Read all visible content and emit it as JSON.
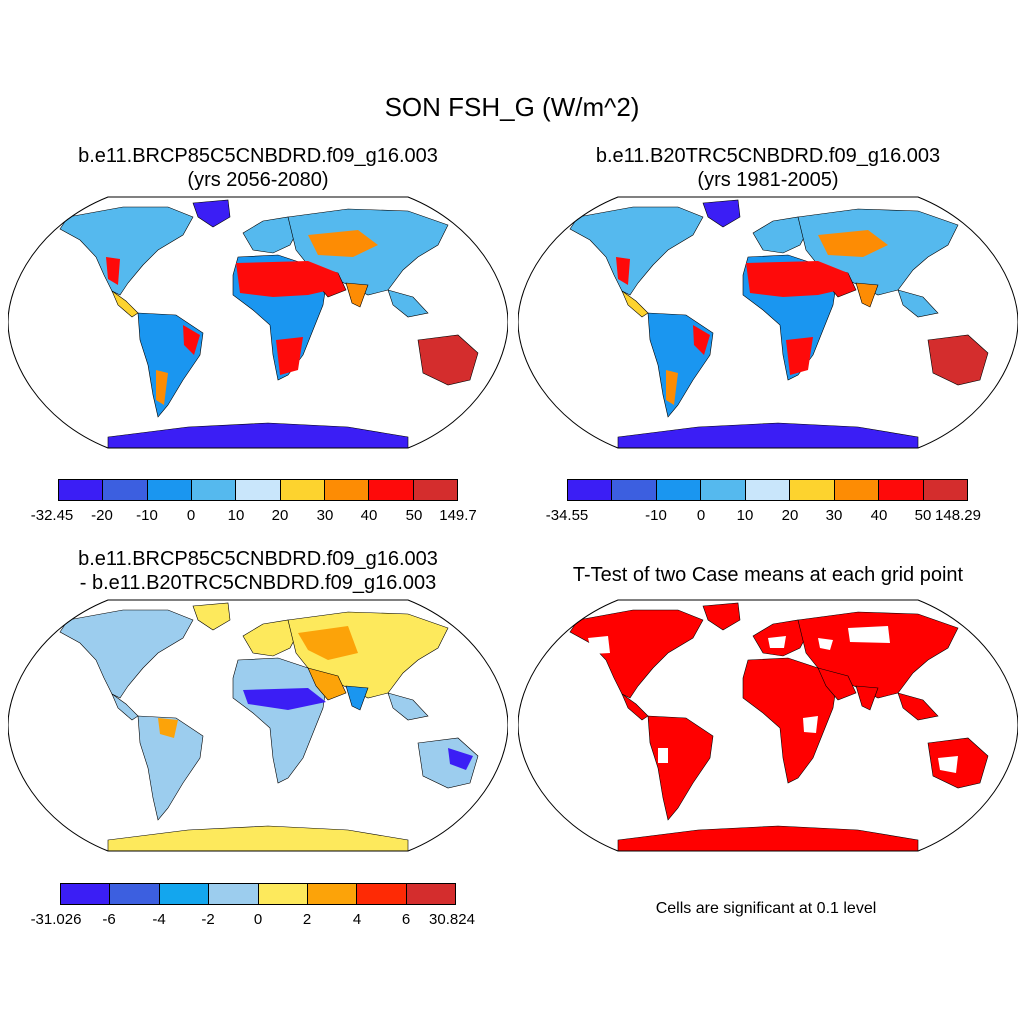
{
  "main_title": "SON FSH_G (W/m^2)",
  "panels": [
    {
      "id": "top-left",
      "title_line1": "b.e11.BRCP85C5CNBDRD.f09_g16.003",
      "title_line2": "(yrs 2056-2080)",
      "colorbar": {
        "colors": [
          "#3b1ef5",
          "#3c5fe0",
          "#1a96f0",
          "#55b9ee",
          "#c9e6fb",
          "#fdd32e",
          "#fd8c04",
          "#fe0a0a",
          "#d42d2d"
        ],
        "labels": [
          "-32.45",
          "-20",
          "-10",
          "0",
          "10",
          "20",
          "30",
          "40",
          "50",
          "149.7"
        ]
      }
    },
    {
      "id": "top-right",
      "title_line1": "b.e11.B20TRC5CNBDRD.f09_g16.003",
      "title_line2": "(yrs 1981-2005)",
      "colorbar": {
        "colors": [
          "#3b1ef5",
          "#3c5fe0",
          "#1a96f0",
          "#55b9ee",
          "#c9e6fb",
          "#fdd32e",
          "#fd8c04",
          "#fe0a0a",
          "#d42d2d"
        ],
        "labels": [
          "-34.55",
          "",
          "-10",
          "0",
          "10",
          "20",
          "30",
          "40",
          "50",
          "148.29"
        ]
      }
    },
    {
      "id": "bottom-left",
      "title_line1": "b.e11.BRCP85C5CNBDRD.f09_g16.003",
      "title_line2": "- b.e11.B20TRC5CNBDRD.f09_g16.003",
      "colorbar": {
        "colors": [
          "#3b1ef5",
          "#3c5fe0",
          "#13a6ee",
          "#9ccdee",
          "#fde95c",
          "#fca309",
          "#fe2a05",
          "#d42d2d"
        ],
        "labels": [
          "-31.026",
          "-6",
          "-4",
          "-2",
          "0",
          "2",
          "4",
          "6",
          "30.824"
        ]
      }
    },
    {
      "id": "bottom-right",
      "title_line1": "T-Test of two Case means at each grid point",
      "note": "Cells are significant at 0.1 level"
    }
  ],
  "map_colors": {
    "top": {
      "land_cool": "#55b9ee",
      "land_mid": "#1a96f0",
      "hot": "#fe0a0a",
      "warm": "#fd8c04",
      "yellow": "#fdd32e",
      "ice": "#3b1ef5",
      "desert_dark": "#d42d2d"
    },
    "diff": {
      "base": "#9ccdee",
      "yellow": "#fde95c",
      "orange": "#fca309",
      "blue": "#1a96f0",
      "dark": "#3b1ef5"
    },
    "sig": "#ff0000"
  }
}
